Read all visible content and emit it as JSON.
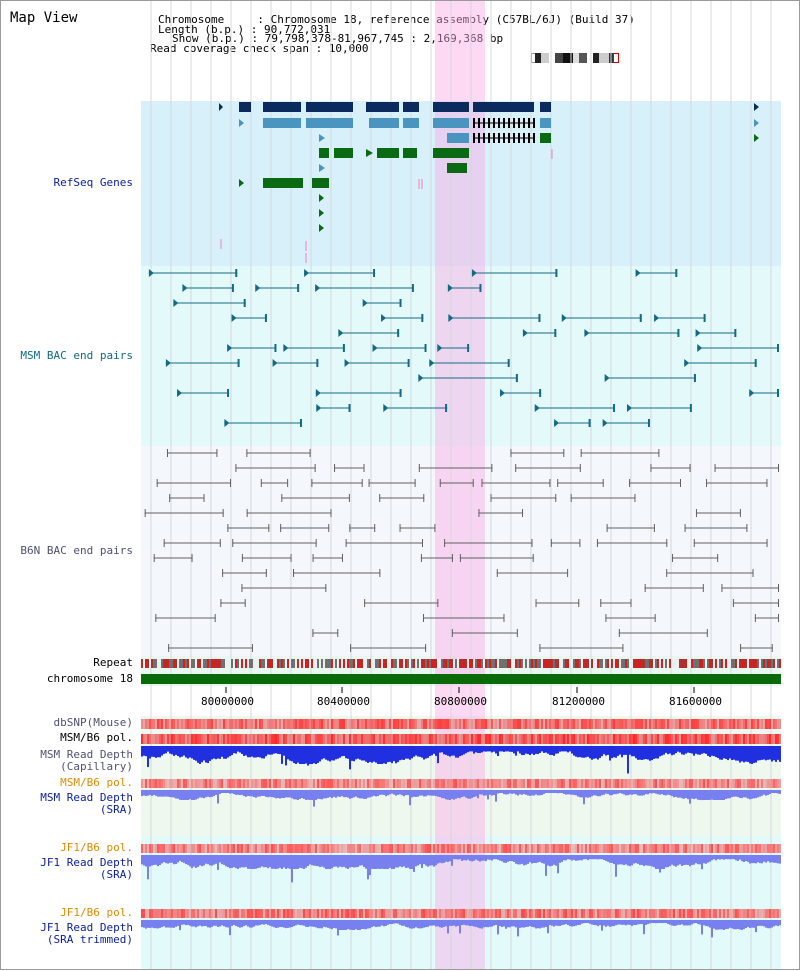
{
  "map_title": "Map View",
  "info": {
    "line1": "Chromosome     : Chromosome 18, reference assembly (C57BL/6J) (Build 37)",
    "line2": "Length (b.p.) : 90,772,031",
    "line3": "Show (b.p.) : 79,798,378-81,967,745 : 2,169,368 bp",
    "line4": "Read coverage check span : 10,000"
  },
  "tracks": {
    "refseq": "RefSeq Genes",
    "msm_bac": "MSM BAC end pairs",
    "b6n_bac": "B6N BAC end pairs",
    "repeat": "Repeat",
    "chromosome": "chromosome 18",
    "dbsnp": "dbSNP(Mouse)",
    "msm_b6_pol": "MSM/B6 pol.",
    "msm_read_cap": "MSM Read Depth\n(Capillary)",
    "msm_b6_pol2": "MSM/B6 pol.",
    "msm_read_sra": "MSM Read Depth\n(SRA)",
    "jf1_b6_pol": "JF1/B6 pol.",
    "jf1_read_sra": "JF1 Read Depth\n(SRA)",
    "jf1_b6_pol2": "JF1/B6 pol.",
    "jf1_read_trim": "JF1 Read Depth\n(SRA trimmed)"
  },
  "axis": {
    "ticks": [
      "80000000",
      "80400000",
      "80800000",
      "81200000",
      "81600000"
    ]
  },
  "colors": {
    "refseq_bg": "#d8f0fa",
    "bac_bg": "#e4fafa",
    "b6n_bg": "#f4f8fc",
    "gene_dark": "#0b2a5e",
    "gene_mid": "#4a94c0",
    "gene_green": "#0a6a14",
    "msm_line": "#146a86",
    "b6n_line": "#606060",
    "chrom": "#0a6a0a",
    "highlight": "#f8b4e8"
  }
}
